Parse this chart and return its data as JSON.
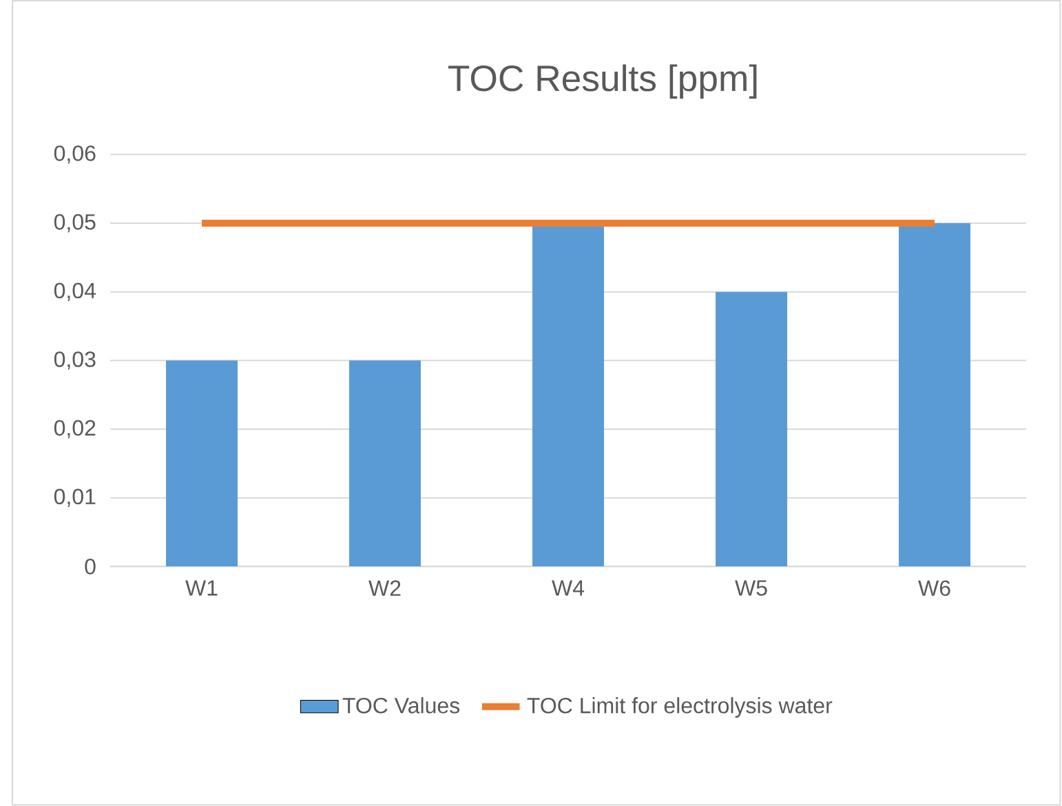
{
  "chart_data": {
    "type": "bar",
    "title": "TOC Results [ppm]",
    "categories": [
      "W1",
      "W2",
      "W4",
      "W5",
      "W6"
    ],
    "series": [
      {
        "name": "TOC Values",
        "color": "#5b9bd5",
        "values": [
          0.03,
          0.03,
          0.05,
          0.04,
          0.05
        ]
      },
      {
        "name": "TOC Limit for electrolysis water",
        "type": "line",
        "color": "#ed7d31",
        "values": [
          0.05,
          0.05,
          0.05,
          0.05,
          0.05
        ]
      }
    ],
    "ylim": [
      0,
      0.06
    ],
    "yticks": [
      0,
      {
        "value": 0.01,
        "label": "0,01"
      },
      {
        "value": 0.02,
        "label": "0,02"
      },
      {
        "value": 0.03,
        "label": "0,03"
      },
      {
        "value": 0.04,
        "label": "0,04"
      },
      {
        "value": 0.05,
        "label": "0,05"
      },
      {
        "value": 0.06,
        "label": "0,06"
      }
    ],
    "grid": "y",
    "legend": "bottom",
    "marker": "none"
  }
}
